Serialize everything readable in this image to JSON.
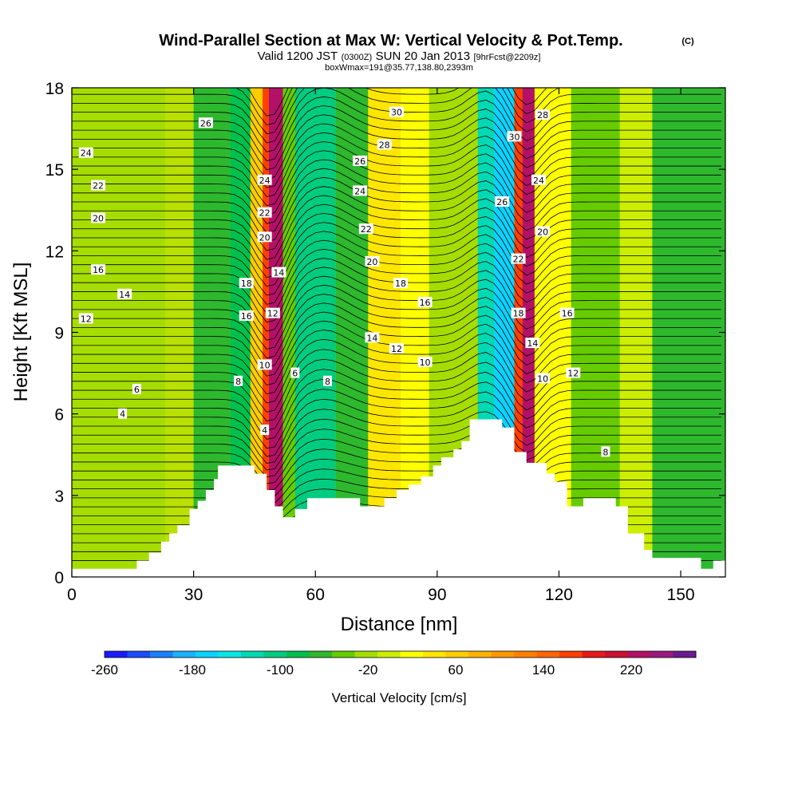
{
  "header": {
    "title": "Wind-Parallel Section at Max W: Vertical Velocity & Pot.Temp.",
    "copyright": "(C)",
    "valid_line": {
      "part1": "Valid 1200 JST",
      "part2": "(0300Z)",
      "part3": "SUN 20 Jan 2013",
      "part4": "[9hrFcst@2209z]"
    },
    "box_line": "boxWmax=191@35.77,138.80,2393m"
  },
  "chart_data": {
    "type": "heatmap",
    "title": "Wind-Parallel Section at Max W: Vertical Velocity & Pot.Temp.",
    "xlabel": "Distance [nm]",
    "ylabel": "Height [Kft MSL]",
    "xlim": [
      0,
      161
    ],
    "ylim": [
      0,
      18
    ],
    "x_ticks": [
      "0",
      "30",
      "60",
      "90",
      "120",
      "150"
    ],
    "x_tick_values": [
      0,
      30,
      60,
      90,
      120,
      150
    ],
    "y_ticks": [
      "0",
      "3",
      "6",
      "9",
      "12",
      "15",
      "18"
    ],
    "y_tick_values": [
      0,
      3,
      6,
      9,
      12,
      15,
      18
    ],
    "terrain": [
      [
        0,
        0.3
      ],
      [
        16,
        0.3
      ],
      [
        16,
        0.6
      ],
      [
        19,
        0.6
      ],
      [
        19,
        0.9
      ],
      [
        22,
        0.9
      ],
      [
        22,
        1.3
      ],
      [
        24,
        1.3
      ],
      [
        24,
        1.6
      ],
      [
        26,
        1.6
      ],
      [
        26,
        1.9
      ],
      [
        29,
        1.9
      ],
      [
        29,
        2.5
      ],
      [
        31,
        2.5
      ],
      [
        31,
        2.8
      ],
      [
        33,
        2.8
      ],
      [
        33,
        3.2
      ],
      [
        35,
        3.2
      ],
      [
        35,
        3.6
      ],
      [
        36,
        3.6
      ],
      [
        36,
        4.1
      ],
      [
        45,
        4.1
      ],
      [
        45,
        3.8
      ],
      [
        48,
        3.8
      ],
      [
        48,
        3.2
      ],
      [
        50,
        3.2
      ],
      [
        50,
        2.6
      ],
      [
        52,
        2.6
      ],
      [
        52,
        2.2
      ],
      [
        55,
        2.2
      ],
      [
        55,
        2.5
      ],
      [
        58,
        2.5
      ],
      [
        58,
        2.9
      ],
      [
        71,
        2.9
      ],
      [
        71,
        2.6
      ],
      [
        77,
        2.6
      ],
      [
        77,
        2.9
      ],
      [
        80,
        2.9
      ],
      [
        80,
        3.2
      ],
      [
        83,
        3.2
      ],
      [
        83,
        3.4
      ],
      [
        86,
        3.4
      ],
      [
        86,
        3.7
      ],
      [
        89,
        3.7
      ],
      [
        89,
        4.1
      ],
      [
        91,
        4.1
      ],
      [
        91,
        4.4
      ],
      [
        94,
        4.4
      ],
      [
        94,
        4.7
      ],
      [
        96,
        4.7
      ],
      [
        96,
        5.0
      ],
      [
        98,
        5.0
      ],
      [
        98,
        5.8
      ],
      [
        106,
        5.8
      ],
      [
        106,
        5.5
      ],
      [
        109,
        5.5
      ],
      [
        109,
        4.6
      ],
      [
        112,
        4.6
      ],
      [
        112,
        4.2
      ],
      [
        117,
        4.2
      ],
      [
        117,
        3.8
      ],
      [
        119,
        3.8
      ],
      [
        119,
        3.5
      ],
      [
        122,
        3.5
      ],
      [
        122,
        2.6
      ],
      [
        126,
        2.6
      ],
      [
        126,
        2.9
      ],
      [
        134,
        2.9
      ],
      [
        134,
        2.6
      ],
      [
        137,
        2.6
      ],
      [
        137,
        1.6
      ],
      [
        141,
        1.6
      ],
      [
        141,
        1.0
      ],
      [
        143,
        1.0
      ],
      [
        143,
        0.7
      ],
      [
        155,
        0.7
      ],
      [
        155,
        0.3
      ],
      [
        158,
        0.3
      ],
      [
        158,
        0.6
      ],
      [
        161,
        0.6
      ]
    ],
    "vertical_velocity_cells": [
      {
        "x": [
          0,
          23
        ],
        "w": -25,
        "note": "left plain"
      },
      {
        "x": [
          30,
          39
        ],
        "w": -60
      },
      {
        "x": [
          39,
          44
        ],
        "w": -90
      },
      {
        "x": [
          44,
          47
        ],
        "w": 60
      },
      {
        "x": [
          47,
          48.5
        ],
        "w": 180
      },
      {
        "x": [
          48.5,
          52
        ],
        "w": 230
      },
      {
        "x": [
          52,
          55
        ],
        "w": -40
      },
      {
        "x": [
          55,
          65
        ],
        "w": -100
      },
      {
        "x": [
          65,
          73
        ],
        "w": -60
      },
      {
        "x": [
          73,
          81
        ],
        "w": 40
      },
      {
        "x": [
          81,
          88
        ],
        "w": 10
      },
      {
        "x": [
          88,
          100
        ],
        "w": -20
      },
      {
        "x": [
          100,
          104
        ],
        "w": -120
      },
      {
        "x": [
          104,
          109
        ],
        "w": -180
      },
      {
        "x": [
          109,
          111
        ],
        "w": 180
      },
      {
        "x": [
          111,
          114
        ],
        "w": 230
      },
      {
        "x": [
          114,
          123
        ],
        "w": 30
      },
      {
        "x": [
          123,
          135
        ],
        "w": -50
      },
      {
        "x": [
          135,
          143
        ],
        "w": -10
      },
      {
        "x": [
          143,
          161
        ],
        "w": -60
      }
    ],
    "theta_labels": [
      {
        "v": "4",
        "x": 12.5,
        "y": 6.0
      },
      {
        "v": "6",
        "x": 16,
        "y": 6.9
      },
      {
        "v": "12",
        "x": 3.5,
        "y": 9.5
      },
      {
        "v": "14",
        "x": 13,
        "y": 10.4
      },
      {
        "v": "16",
        "x": 6.5,
        "y": 11.3
      },
      {
        "v": "20",
        "x": 6.5,
        "y": 13.2
      },
      {
        "v": "22",
        "x": 6.5,
        "y": 14.4
      },
      {
        "v": "24",
        "x": 3.5,
        "y": 15.6
      },
      {
        "v": "26",
        "x": 33,
        "y": 16.7
      },
      {
        "v": "8",
        "x": 41,
        "y": 7.2
      },
      {
        "v": "16",
        "x": 43,
        "y": 9.6
      },
      {
        "v": "18",
        "x": 43,
        "y": 10.8
      },
      {
        "v": "4",
        "x": 47.5,
        "y": 5.4
      },
      {
        "v": "10",
        "x": 47.5,
        "y": 7.8
      },
      {
        "v": "12",
        "x": 49.5,
        "y": 9.7
      },
      {
        "v": "14",
        "x": 51,
        "y": 11.2
      },
      {
        "v": "20",
        "x": 47.5,
        "y": 12.5
      },
      {
        "v": "22",
        "x": 47.5,
        "y": 13.4
      },
      {
        "v": "24",
        "x": 47.5,
        "y": 14.6
      },
      {
        "v": "6",
        "x": 55,
        "y": 7.5
      },
      {
        "v": "8",
        "x": 63,
        "y": 7.2
      },
      {
        "v": "14",
        "x": 74,
        "y": 8.8
      },
      {
        "v": "12",
        "x": 80,
        "y": 8.4
      },
      {
        "v": "10",
        "x": 87,
        "y": 7.9
      },
      {
        "v": "20",
        "x": 74,
        "y": 11.6
      },
      {
        "v": "22",
        "x": 72.5,
        "y": 12.8
      },
      {
        "v": "24",
        "x": 71,
        "y": 14.2
      },
      {
        "v": "26",
        "x": 71,
        "y": 15.3
      },
      {
        "v": "28",
        "x": 77,
        "y": 15.9
      },
      {
        "v": "30",
        "x": 80,
        "y": 17.1
      },
      {
        "v": "18",
        "x": 81,
        "y": 10.8
      },
      {
        "v": "16",
        "x": 87,
        "y": 10.1
      },
      {
        "v": "26",
        "x": 106,
        "y": 13.8
      },
      {
        "v": "30",
        "x": 109,
        "y": 16.2
      },
      {
        "v": "28",
        "x": 116,
        "y": 17.0
      },
      {
        "v": "24",
        "x": 115,
        "y": 14.6
      },
      {
        "v": "20",
        "x": 116,
        "y": 12.7
      },
      {
        "v": "22",
        "x": 110,
        "y": 11.7
      },
      {
        "v": "18",
        "x": 110,
        "y": 9.7
      },
      {
        "v": "14",
        "x": 113.5,
        "y": 8.6
      },
      {
        "v": "10",
        "x": 116,
        "y": 7.3
      },
      {
        "v": "16",
        "x": 122,
        "y": 9.7
      },
      {
        "v": "12",
        "x": 123.5,
        "y": 7.5
      },
      {
        "v": "8",
        "x": 131.5,
        "y": 4.6
      }
    ],
    "colorbar": {
      "label": "Vertical Velocity [cm/s]",
      "ticks": [
        "-260",
        "-180",
        "-100",
        "-20",
        "60",
        "140",
        "220"
      ],
      "colors": [
        "#1a1aff",
        "#1a4dff",
        "#1a80ff",
        "#1ab3ff",
        "#0ad3ff",
        "#0ae6e6",
        "#00d9b3",
        "#00cc80",
        "#00c04d",
        "#2eb82e",
        "#66cc00",
        "#a6dd00",
        "#ccee00",
        "#ffff00",
        "#ffe600",
        "#ffcc00",
        "#ffb300",
        "#ff9900",
        "#ff8000",
        "#ff6600",
        "#ff4000",
        "#e61a1a",
        "#cc1133",
        "#b31166",
        "#991a80",
        "#6b1a8f"
      ]
    }
  }
}
